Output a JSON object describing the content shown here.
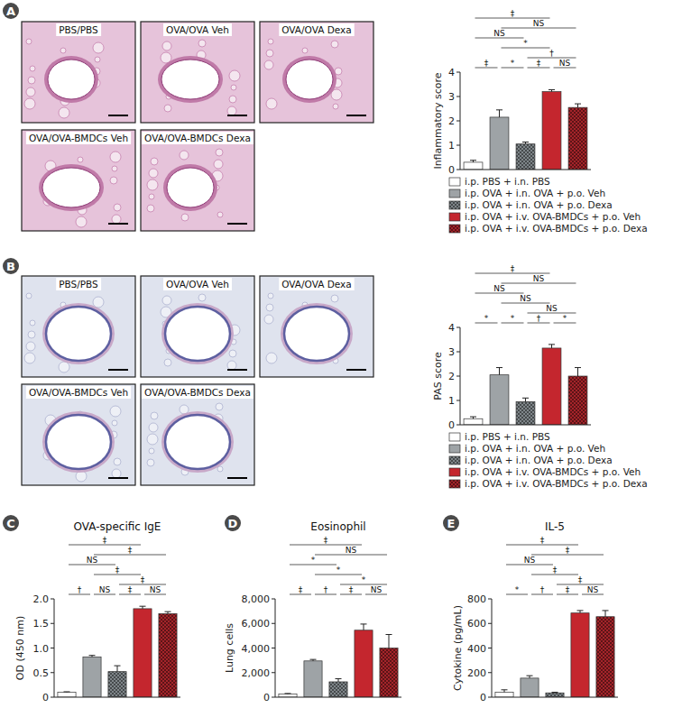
{
  "figure": {
    "panels": [
      {
        "letter": "A",
        "images": [
          "PBS/PBS",
          "OVA/OVA Veh",
          "OVA/OVA Dexa",
          "OVA/OVA-BMDCs Veh",
          "OVA/OVA-BMDCs Dexa"
        ]
      },
      {
        "letter": "B",
        "images": [
          "PBS/PBS",
          "OVA/OVA Veh",
          "OVA/OVA Dexa",
          "OVA/OVA-BMDCs Veh",
          "OVA/OVA-BMDCs Dexa"
        ]
      },
      {
        "letter": "C"
      },
      {
        "letter": "D"
      },
      {
        "letter": "E"
      }
    ]
  },
  "chart_data": [
    {
      "type": "bar",
      "ylabel": "Inflammatory score",
      "categories": [
        "i.p. PBS + i.n. PBS",
        "i.p. OVA + i.n. OVA + p.o. Veh",
        "i.p. OVA + i.n. OVA + p.o. Dexa",
        "i.p. OVA + i.v. OVA-BMDCs + p.o. Veh",
        "i.p. OVA + i.v. OVA-BMDCs + p.o. Dexa"
      ],
      "values": [
        0.3,
        2.15,
        1.05,
        3.2,
        2.55
      ],
      "errors": [
        0.08,
        0.3,
        0.08,
        0.08,
        0.15
      ],
      "colors": [
        "#ffffff",
        "#9ea3a6",
        "#7f868a",
        "#c4262e",
        "#a5242a"
      ],
      "ylim": [
        0,
        4
      ],
      "yticks": [
        0,
        1,
        2,
        3,
        4
      ],
      "legend": "bottom",
      "tick_labels": "y",
      "annotations": [
        {
          "from": 0,
          "to": 3,
          "label": "‡"
        },
        {
          "from": 1,
          "to": 4,
          "label": "NS"
        },
        {
          "from": 0,
          "to": 2,
          "label": "NS"
        },
        {
          "from": 1,
          "to": 3,
          "label": "*"
        },
        {
          "from": 2,
          "to": 4,
          "label": "†"
        },
        {
          "from": 0,
          "to": 1,
          "label": "‡"
        },
        {
          "from": 1,
          "to": 2,
          "label": "*"
        },
        {
          "from": 2,
          "to": 3,
          "label": "‡"
        },
        {
          "from": 3,
          "to": 4,
          "label": "NS"
        }
      ]
    },
    {
      "type": "bar",
      "ylabel": "PAS score",
      "categories": [
        "i.p. PBS + i.n. PBS",
        "i.p. OVA + i.n. OVA + p.o. Veh",
        "i.p. OVA + i.n. OVA + p.o. Dexa",
        "i.p. OVA + i.v. OVA-BMDCs + p.o. Veh",
        "i.p. OVA + i.v. OVA-BMDCs + p.o. Dexa"
      ],
      "values": [
        0.25,
        2.05,
        0.95,
        3.15,
        2.0
      ],
      "errors": [
        0.08,
        0.3,
        0.15,
        0.15,
        0.35
      ],
      "colors": [
        "#ffffff",
        "#9ea3a6",
        "#7f868a",
        "#c4262e",
        "#a5242a"
      ],
      "ylim": [
        0,
        4
      ],
      "yticks": [
        0,
        1,
        2,
        3,
        4
      ],
      "legend": "bottom",
      "tick_labels": "y",
      "annotations": [
        {
          "from": 0,
          "to": 3,
          "label": "‡"
        },
        {
          "from": 1,
          "to": 4,
          "label": "NS"
        },
        {
          "from": 0,
          "to": 2,
          "label": "NS"
        },
        {
          "from": 1,
          "to": 3,
          "label": "NS"
        },
        {
          "from": 2,
          "to": 4,
          "label": "NS"
        },
        {
          "from": 0,
          "to": 1,
          "label": "*"
        },
        {
          "from": 1,
          "to": 2,
          "label": "*"
        },
        {
          "from": 2,
          "to": 3,
          "label": "†"
        },
        {
          "from": 3,
          "to": 4,
          "label": "*"
        }
      ]
    },
    {
      "type": "bar",
      "title": "OVA-specific IgE",
      "ylabel": "OD (450 nm)",
      "categories": [
        null,
        null,
        null,
        null,
        null
      ],
      "values": [
        0.1,
        0.82,
        0.52,
        1.8,
        1.7
      ],
      "errors": [
        0.01,
        0.03,
        0.12,
        0.05,
        0.04
      ],
      "colors": [
        "#ffffff",
        "#9ea3a6",
        "#7f868a",
        "#c4262e",
        "#a5242a"
      ],
      "ylim": [
        0,
        2
      ],
      "yticks": [
        0,
        0.5,
        {
          "value": 1,
          "label": "1.0"
        },
        1.5,
        {
          "value": 2,
          "label": "2.0"
        }
      ],
      "tick_labels": "y",
      "annotations": [
        {
          "from": 0,
          "to": 3,
          "label": "‡"
        },
        {
          "from": 1,
          "to": 4,
          "label": "‡"
        },
        {
          "from": 0,
          "to": 2,
          "label": "NS"
        },
        {
          "from": 1,
          "to": 3,
          "label": "‡"
        },
        {
          "from": 2,
          "to": 4,
          "label": "‡"
        },
        {
          "from": 0,
          "to": 1,
          "label": "†"
        },
        {
          "from": 1,
          "to": 2,
          "label": "NS"
        },
        {
          "from": 2,
          "to": 3,
          "label": "‡"
        },
        {
          "from": 3,
          "to": 4,
          "label": "NS"
        }
      ]
    },
    {
      "type": "bar",
      "title": "Eosinophil",
      "ylabel": "Lung cells",
      "categories": [
        null,
        null,
        null,
        null,
        null
      ],
      "values": [
        250,
        2950,
        1250,
        5450,
        4000
      ],
      "errors": [
        50,
        120,
        250,
        500,
        1100
      ],
      "colors": [
        "#ffffff",
        "#9ea3a6",
        "#7f868a",
        "#c4262e",
        "#a5242a"
      ],
      "ylim": [
        0,
        8000
      ],
      "yticks": [
        0,
        {
          "value": 2000,
          "label": "2,000"
        },
        {
          "value": 4000,
          "label": "4,000"
        },
        {
          "value": 6000,
          "label": "6,000"
        },
        {
          "value": 8000,
          "label": "8,000"
        }
      ],
      "tick_labels": "y",
      "annotations": [
        {
          "from": 0,
          "to": 3,
          "label": "‡"
        },
        {
          "from": 1,
          "to": 4,
          "label": "NS"
        },
        {
          "from": 0,
          "to": 2,
          "label": "*"
        },
        {
          "from": 1,
          "to": 3,
          "label": "*"
        },
        {
          "from": 2,
          "to": 4,
          "label": "*"
        },
        {
          "from": 0,
          "to": 1,
          "label": "‡"
        },
        {
          "from": 1,
          "to": 2,
          "label": "†"
        },
        {
          "from": 2,
          "to": 3,
          "label": "‡"
        },
        {
          "from": 3,
          "to": 4,
          "label": "NS"
        }
      ]
    },
    {
      "type": "bar",
      "title": "IL-5",
      "ylabel": "Cytokine (pg/mL)",
      "categories": [
        null,
        null,
        null,
        null,
        null
      ],
      "values": [
        40,
        155,
        35,
        685,
        655
      ],
      "errors": [
        20,
        20,
        5,
        20,
        50
      ],
      "colors": [
        "#ffffff",
        "#9ea3a6",
        "#7f868a",
        "#c4262e",
        "#a5242a"
      ],
      "ylim": [
        0,
        800
      ],
      "yticks": [
        0,
        200,
        400,
        600,
        800
      ],
      "tick_labels": "y",
      "annotations": [
        {
          "from": 0,
          "to": 3,
          "label": "‡"
        },
        {
          "from": 1,
          "to": 4,
          "label": "‡"
        },
        {
          "from": 0,
          "to": 2,
          "label": "NS"
        },
        {
          "from": 1,
          "to": 3,
          "label": "‡"
        },
        {
          "from": 2,
          "to": 4,
          "label": "‡"
        },
        {
          "from": 0,
          "to": 1,
          "label": "*"
        },
        {
          "from": 1,
          "to": 2,
          "label": "†"
        },
        {
          "from": 2,
          "to": 3,
          "label": "‡"
        },
        {
          "from": 3,
          "to": 4,
          "label": "NS"
        }
      ]
    }
  ]
}
